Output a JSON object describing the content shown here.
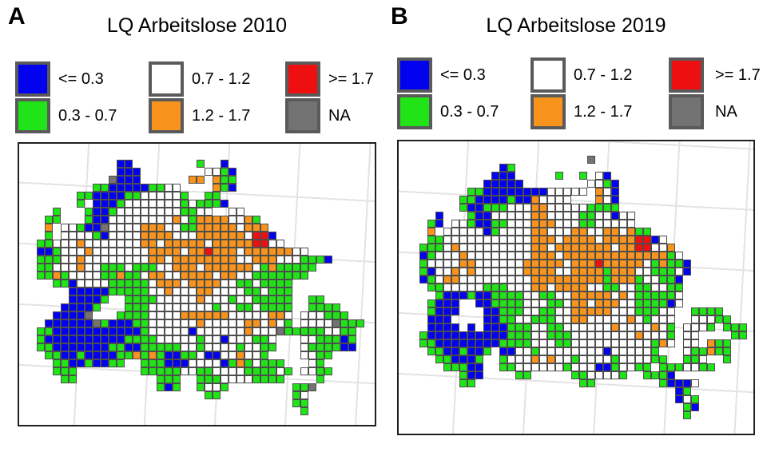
{
  "figure": {
    "panels": [
      {
        "label": "A",
        "title": "LQ Arbeitslose 2010",
        "grid": [
          "..........BB........G..B..................",
          "..........BBB........WWGB.................",
          ".........NBBB......OO.OGG.................",
          ".......GGBBBBBGGWW....OGB.................",
          ".....GGBBBBGGWWWWWG..GG...................",
          ".....G.BBBGWWWWWWWGWGGGB..................",
          "..G...GBBGWWWWWWWWGGWW..WW................",
          ".GG...GBBWWWWWWWWOWGOOOOWWOG..............",
          ".O.WWGBBNWWWWOOOWWGGOOOOOWOOO.............",
          ".G.WWWWGBWWWWOOOOWWWOOOOOOWRRB............",
          "GGWWWOWWWWWWWOOWOOOOOWOOOOORRWW...........",
          "BBGWWWOWWWWWWWOOOOWOOROOOWOOOOOOWW........",
          "GGGWWOWWWWWWWWOOWOOOOOOOOWWOOOWWWGGGB.....",
          "GGWWWOWWGGGWGGGWWOOOWOOOOOOWGOGGGGG.......",
          "GGOGWWWWGGOGGWOOWWOOOOWOOWWGGGGGGG........",
          "..GGBWWWWGGGGGWOOOWOOOOWWGGWGGGG..........",
          "....BBBBBGGGGGWWOWWWOOWWWWGGWGGG..........",
          "....BBBBG..GGGGWWWWWOWWWGWWGGGGG..GG......",
          "...BBBBG...GGGWWWWWWWWGWWGGWGGGG..GGGG....",
          "..BBBBN...GGGGWWWWOOOOOOWWWWWOOW.WWWGGG...",
          ".BBBBBBNGBBBGGWWWWWWOWWWWWOOWOWG.WWWWNGGG.",
          "GGBBBBBBBBBBBGWWWWWBWWWWWWOWWWNGGGGGWWGG..",
          "GBBBBBBBBBBGGGGWWWWWGWWBWWWGGW...WWGGGBG..",
          "GGBBBBBBBGGBBGGGGGWWGWWWWGWWGG...WGGGGBB..",
          ".GGBBGBBBBGGOGOGBBGGWBBWWOWWG....WWGG.....",
          "..GGBBGBBGG..GGGBBBWWWWBGOGWGGG...WG......",
          "..GGG........GGGGGWWGGWWWWGGGGWG.WWGG.....",
          "...GG..........GGG..GGGWWWWGGGG....G......",
          "...............GBG..GWWG........GGN.......",
          ".....................GG.........GW........",
          "................................GG........",
          ".................................G........"
        ]
      },
      {
        "label": "B",
        "title": "LQ Arbeitslose 2019",
        "grid": [
          ".....................N....................",
          "..........BG..............................",
          ".........BBB.....G..G.WB..................",
          "........BBBBB........WWGB.................",
          "......GGBBBBBBBBWWWWW.OWB.................",
          ".....GGBBBBGBBOWWWW...OWB.................",
          ".....GBBGGGWWWOOWWWWWGGGG.................",
          "..B...GBBWWWWWOOWWWWGGWWBWW...............",
          ".GB.WWGBBGGWWWOOOWWWGGWWWWW...............",
          ".O.WWWWWBGWWWWOOWWWOOWWOOWOGG.............",
          ".GGWWWWWWWWWWWOOOWOOOOWOOOORRBW...........",
          "GGGWOWWWWWWWWWOOWOOOOOOOWOORRWWO..........",
          "BGWWWOWWWWWWWWOOOWOOOOOOOOOOOOOGW.........",
          "GWWWWOOWWWWWWOOOOOWOOOROOOOOWGOGGB........",
          "GBWWOWOWWWWWWOOOOWWOOOOGOOOWWGGGWB........",
          "BGWOOWWWWWWWWWOOOOOOOOOGOOOGWWGGB.........",
          ".GGWWWWWGGGWWWOOWOOOOWWGGWWGGWWGG.........",
          "..GBBBGBBGGGGWWGGWWOOOOOWOWGGGGGW.........",
          ".GBBB..BBGGGGWWWGGWOOWOOOWWGGGGBW.........",
          ".GBBB...BBGGGWWGGWWOOOOOWWWGGGWW..GGGG....",
          ".BBB....BBGGWWGGGWWOOWWWWWOWGWWW..WWWGG...",
          ".BBBB.B.BBBGGGWWGGWWWWWWOWWWWOWG.WWWG.GGG.",
          "GBBBBBBBBBBGGGWWGGGWWWWWWWWOWWWG.WW....GG.",
          "GGBBBBBBBBGGGGWWWGGWWWWWWWWWWGOW.WW.OGG...",
          ".GGBBGBBG.BBWWGWWWWWWWWBWWWWWG...WGGOGG...",
          "..GGBBBG..GWWWOWOWWGWWWWGWWWWGG..GGW..G...",
          "...GGGBB..GGWWWWWWGWWWBBGWWGG.GGGWWGG.....",
          ".....GBB....GG.....GGWWWWG..GGGB..........",
          ".....GG.............GG........GBBBW.......",
          "................................BG........",
          "................................BWG.......",
          ".................................GB.......",
          ".................................G........"
        ]
      }
    ],
    "legend_items": [
      {
        "code": "B",
        "label": "<= 0.3",
        "color": "#0202ee"
      },
      {
        "code": "G",
        "label": "0.3 - 0.7",
        "color": "#21e418"
      },
      {
        "code": "W",
        "label": "0.7 - 1.2",
        "color": "#ffffff"
      },
      {
        "code": "O",
        "label": "1.2 - 1.7",
        "color": "#f8941d"
      },
      {
        "code": "R",
        "label": ">= 1.7",
        "color": "#ee1010"
      },
      {
        "code": "N",
        "label": "NA",
        "color": "#737373"
      }
    ],
    "colors": {
      "cell_border": "#4d4d4d",
      "swatch_border": "#5a5a5a",
      "frame_border": "#1f1f1f",
      "graticule": "#e3e3e3",
      "background": "#ffffff"
    }
  }
}
